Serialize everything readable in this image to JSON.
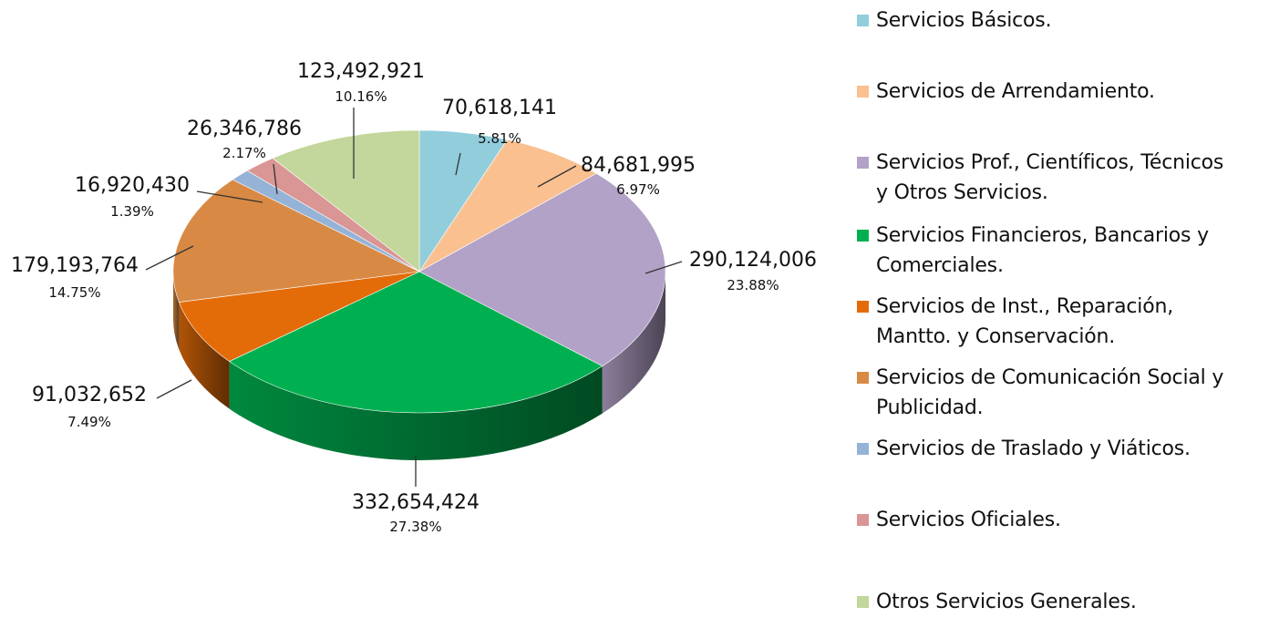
{
  "chart_data": {
    "type": "pie",
    "style": "3d",
    "slices": [
      {
        "label": "Servicios Básicos.",
        "value_text": "70,618,141",
        "pct_text": "5.81%",
        "value": 70618141,
        "color": "#92cddc"
      },
      {
        "label": "Servicios de Arrendamiento.",
        "value_text": "84,681,995",
        "pct_text": "6.97%",
        "value": 84681995,
        "color": "#fac090"
      },
      {
        "label": "Servicios Prof., Científicos, Técnicos\ny Otros Servicios.",
        "value_text": "290,124,006",
        "pct_text": "23.88%",
        "value": 290124006,
        "color": "#b3a2c7"
      },
      {
        "label": "Servicios Financieros, Bancarios y\nComerciales.",
        "value_text": "332,654,424",
        "pct_text": "27.38%",
        "value": 332654424,
        "color": "#00b050"
      },
      {
        "label": "Servicios de Inst., Reparación,\nMantto. y Conservación.",
        "value_text": "91,032,652",
        "pct_text": "7.49%",
        "value": 91032652,
        "color": "#e36c09"
      },
      {
        "label": "Servicios de Comunicación Social y\nPublicidad.",
        "value_text": "179,193,764",
        "pct_text": "14.75%",
        "value": 179193764,
        "color": "#d88a45"
      },
      {
        "label": "Servicios de Traslado y Viáticos.",
        "value_text": "16,920,430",
        "pct_text": "1.39%",
        "value": 16920430,
        "color": "#95b3d7"
      },
      {
        "label": "Servicios Oficiales.",
        "value_text": "26,346,786",
        "pct_text": "2.17%",
        "value": 26346786,
        "color": "#d99694"
      },
      {
        "label": "Otros Servicios Generales.",
        "value_text": "123,492,921",
        "pct_text": "10.16%",
        "value": 123492921,
        "color": "#c3d69b"
      }
    ],
    "legend_position": "right"
  }
}
